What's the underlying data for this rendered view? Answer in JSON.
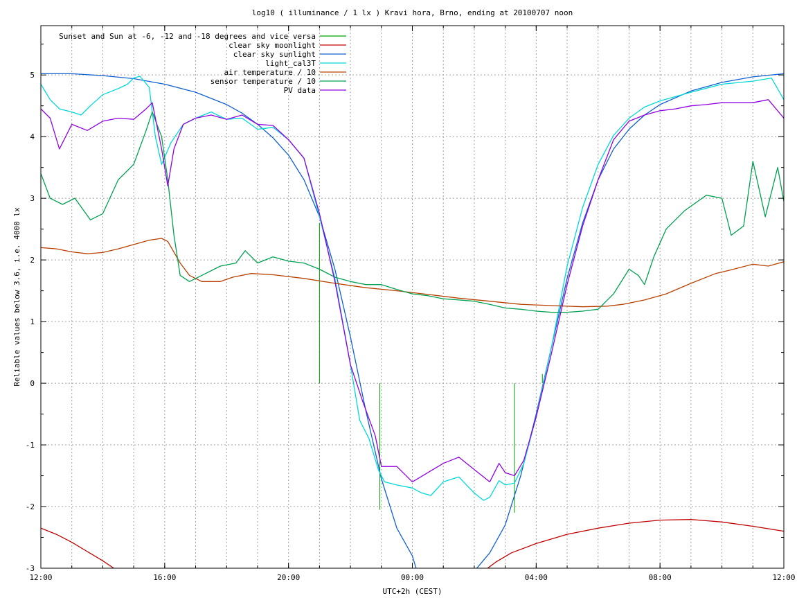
{
  "chart_data": {
    "type": "line",
    "title": "log10 ( illuminance / 1 lx ) Kravi hora, Brno, ending at 20100707 noon",
    "xlabel": "UTC+2h (CEST)",
    "ylabel": "Reliable values below 3.6, i.e. 4000 lx",
    "x_unit": "hours since 12:00 (previous day)",
    "xlim": [
      0,
      24
    ],
    "ylim": [
      -3,
      5.8
    ],
    "x_ticks": [
      {
        "value": 0,
        "label": "12:00"
      },
      {
        "value": 4,
        "label": "16:00"
      },
      {
        "value": 8,
        "label": "20:00"
      },
      {
        "value": 12,
        "label": "00:00"
      },
      {
        "value": 16,
        "label": "04:00"
      },
      {
        "value": 20,
        "label": "08:00"
      },
      {
        "value": 24,
        "label": "12:00"
      }
    ],
    "y_ticks": [
      {
        "value": -3,
        "label": "-3"
      },
      {
        "value": -2,
        "label": "-2"
      },
      {
        "value": -1,
        "label": "-1"
      },
      {
        "value": 0,
        "label": "0"
      },
      {
        "value": 1,
        "label": "1"
      },
      {
        "value": 2,
        "label": "2"
      },
      {
        "value": 3,
        "label": "3"
      },
      {
        "value": 4,
        "label": "4"
      },
      {
        "value": 5,
        "label": "5"
      }
    ],
    "grid": true,
    "legend_position": "top-left",
    "series": [
      {
        "name": "Sunset and Sun at -6, -12 and -18 degrees and vice versa",
        "color": "#00a000",
        "style": "impulses",
        "points": [
          [
            9.0,
            2.6
          ],
          [
            9.95,
            0
          ],
          [
            10.95,
            -2.05
          ],
          [
            12.7,
            0
          ],
          [
            13.45,
            0
          ],
          [
            15.3,
            -2.1
          ],
          [
            16.2,
            0
          ],
          [
            16.2,
            0.15
          ],
          [
            16.95,
            0
          ]
        ]
      },
      {
        "name": "clear sky moonlight",
        "color": "#c00000",
        "style": "line",
        "points": [
          [
            0,
            -2.35
          ],
          [
            0.5,
            -2.45
          ],
          [
            1.0,
            -2.58
          ],
          [
            1.5,
            -2.73
          ],
          [
            2.0,
            -2.88
          ],
          [
            2.5,
            -3.05
          ],
          [
            14.3,
            -3.05
          ],
          [
            14.7,
            -2.9
          ],
          [
            15.2,
            -2.75
          ],
          [
            16.0,
            -2.6
          ],
          [
            17.0,
            -2.45
          ],
          [
            18.0,
            -2.35
          ],
          [
            19.0,
            -2.27
          ],
          [
            20.0,
            -2.22
          ],
          [
            21.0,
            -2.21
          ],
          [
            22.0,
            -2.25
          ],
          [
            23.0,
            -2.32
          ],
          [
            24.0,
            -2.4
          ]
        ]
      },
      {
        "name": "clear sky sunlight",
        "color": "#1060d0",
        "style": "line",
        "points": [
          [
            0,
            5.02
          ],
          [
            1.0,
            5.02
          ],
          [
            2.0,
            4.99
          ],
          [
            3.0,
            4.94
          ],
          [
            4.0,
            4.85
          ],
          [
            5.0,
            4.72
          ],
          [
            6.0,
            4.52
          ],
          [
            6.5,
            4.38
          ],
          [
            7.0,
            4.2
          ],
          [
            7.5,
            3.98
          ],
          [
            8.0,
            3.7
          ],
          [
            8.5,
            3.3
          ],
          [
            9.0,
            2.7
          ],
          [
            9.5,
            1.85
          ],
          [
            10.0,
            0.75
          ],
          [
            10.5,
            -0.45
          ],
          [
            11.0,
            -1.55
          ],
          [
            11.5,
            -2.35
          ],
          [
            12.0,
            -2.8
          ],
          [
            12.15,
            -3.05
          ],
          [
            14.0,
            -3.05
          ],
          [
            14.5,
            -2.75
          ],
          [
            15.0,
            -2.3
          ],
          [
            15.5,
            -1.5
          ],
          [
            16.0,
            -0.5
          ],
          [
            16.5,
            0.6
          ],
          [
            17.0,
            1.7
          ],
          [
            17.5,
            2.6
          ],
          [
            18.0,
            3.3
          ],
          [
            18.5,
            3.8
          ],
          [
            19.0,
            4.12
          ],
          [
            19.5,
            4.35
          ],
          [
            20.0,
            4.52
          ],
          [
            21.0,
            4.74
          ],
          [
            22.0,
            4.88
          ],
          [
            23.0,
            4.97
          ],
          [
            24.0,
            5.02
          ]
        ]
      },
      {
        "name": "light_cal3T",
        "color": "#00d8d8",
        "style": "line",
        "points": [
          [
            0,
            4.85
          ],
          [
            0.3,
            4.6
          ],
          [
            0.6,
            4.45
          ],
          [
            1.0,
            4.4
          ],
          [
            1.3,
            4.35
          ],
          [
            1.6,
            4.5
          ],
          [
            2.0,
            4.68
          ],
          [
            2.5,
            4.78
          ],
          [
            2.8,
            4.85
          ],
          [
            3.0,
            4.95
          ],
          [
            3.2,
            4.98
          ],
          [
            3.5,
            4.8
          ],
          [
            3.7,
            4.0
          ],
          [
            3.9,
            3.55
          ],
          [
            4.2,
            3.9
          ],
          [
            4.6,
            4.2
          ],
          [
            5.0,
            4.3
          ],
          [
            5.5,
            4.4
          ],
          [
            6.0,
            4.28
          ],
          [
            6.5,
            4.3
          ],
          [
            7.0,
            4.12
          ],
          [
            7.5,
            4.15
          ],
          [
            8.0,
            3.95
          ],
          [
            8.5,
            3.65
          ],
          [
            9.0,
            2.7
          ],
          [
            9.5,
            1.7
          ],
          [
            10.0,
            0.3
          ],
          [
            10.3,
            -0.6
          ],
          [
            10.6,
            -0.9
          ],
          [
            10.9,
            -1.4
          ],
          [
            11.1,
            -1.6
          ],
          [
            11.5,
            -1.65
          ],
          [
            12.0,
            -1.7
          ],
          [
            12.3,
            -1.78
          ],
          [
            12.6,
            -1.82
          ],
          [
            13.0,
            -1.6
          ],
          [
            13.5,
            -1.52
          ],
          [
            14.0,
            -1.78
          ],
          [
            14.3,
            -1.9
          ],
          [
            14.5,
            -1.85
          ],
          [
            14.8,
            -1.58
          ],
          [
            15.0,
            -1.65
          ],
          [
            15.3,
            -1.62
          ],
          [
            15.6,
            -1.3
          ],
          [
            16.0,
            -0.55
          ],
          [
            16.5,
            0.6
          ],
          [
            17.0,
            1.9
          ],
          [
            17.5,
            2.85
          ],
          [
            18.0,
            3.55
          ],
          [
            18.5,
            4.02
          ],
          [
            19.0,
            4.3
          ],
          [
            19.5,
            4.48
          ],
          [
            20.0,
            4.58
          ],
          [
            21.0,
            4.72
          ],
          [
            22.0,
            4.85
          ],
          [
            23.0,
            4.9
          ],
          [
            23.6,
            4.95
          ],
          [
            24.0,
            4.6
          ]
        ]
      },
      {
        "name": "air temperature / 10",
        "color": "#b84000",
        "style": "line",
        "points": [
          [
            0,
            2.2
          ],
          [
            0.5,
            2.18
          ],
          [
            1.0,
            2.13
          ],
          [
            1.5,
            2.1
          ],
          [
            2.0,
            2.12
          ],
          [
            2.5,
            2.18
          ],
          [
            3.0,
            2.25
          ],
          [
            3.5,
            2.32
          ],
          [
            3.9,
            2.35
          ],
          [
            4.1,
            2.3
          ],
          [
            4.5,
            1.95
          ],
          [
            4.8,
            1.75
          ],
          [
            5.2,
            1.65
          ],
          [
            5.8,
            1.65
          ],
          [
            6.2,
            1.72
          ],
          [
            6.8,
            1.78
          ],
          [
            7.5,
            1.76
          ],
          [
            8.5,
            1.7
          ],
          [
            9.5,
            1.62
          ],
          [
            10.5,
            1.55
          ],
          [
            11.5,
            1.5
          ],
          [
            12.5,
            1.44
          ],
          [
            13.5,
            1.38
          ],
          [
            14.5,
            1.33
          ],
          [
            15.5,
            1.28
          ],
          [
            16.5,
            1.26
          ],
          [
            17.5,
            1.24
          ],
          [
            18.3,
            1.25
          ],
          [
            18.8,
            1.28
          ],
          [
            19.5,
            1.35
          ],
          [
            20.2,
            1.45
          ],
          [
            21.0,
            1.62
          ],
          [
            21.8,
            1.78
          ],
          [
            22.3,
            1.84
          ],
          [
            23.0,
            1.93
          ],
          [
            23.5,
            1.9
          ],
          [
            24.0,
            1.97
          ]
        ]
      },
      {
        "name": "sensor temperature / 10",
        "color": "#00a050",
        "style": "line",
        "points": [
          [
            0,
            3.4
          ],
          [
            0.3,
            3.0
          ],
          [
            0.7,
            2.9
          ],
          [
            1.1,
            3.0
          ],
          [
            1.6,
            2.65
          ],
          [
            2.0,
            2.75
          ],
          [
            2.5,
            3.3
          ],
          [
            3.0,
            3.55
          ],
          [
            3.4,
            4.1
          ],
          [
            3.6,
            4.4
          ],
          [
            3.9,
            4.0
          ],
          [
            4.1,
            3.3
          ],
          [
            4.3,
            2.4
          ],
          [
            4.5,
            1.75
          ],
          [
            4.8,
            1.65
          ],
          [
            5.2,
            1.75
          ],
          [
            5.8,
            1.9
          ],
          [
            6.3,
            1.95
          ],
          [
            6.6,
            2.15
          ],
          [
            7.0,
            1.95
          ],
          [
            7.5,
            2.05
          ],
          [
            8.0,
            1.98
          ],
          [
            8.5,
            1.95
          ],
          [
            9.0,
            1.85
          ],
          [
            9.5,
            1.72
          ],
          [
            10.0,
            1.65
          ],
          [
            10.5,
            1.6
          ],
          [
            11.0,
            1.6
          ],
          [
            11.5,
            1.52
          ],
          [
            12.0,
            1.45
          ],
          [
            12.5,
            1.42
          ],
          [
            13.0,
            1.37
          ],
          [
            13.5,
            1.35
          ],
          [
            14.0,
            1.33
          ],
          [
            14.5,
            1.28
          ],
          [
            15.0,
            1.22
          ],
          [
            15.5,
            1.2
          ],
          [
            16.0,
            1.17
          ],
          [
            16.5,
            1.15
          ],
          [
            17.0,
            1.15
          ],
          [
            17.5,
            1.17
          ],
          [
            18.0,
            1.2
          ],
          [
            18.5,
            1.45
          ],
          [
            19.0,
            1.85
          ],
          [
            19.3,
            1.75
          ],
          [
            19.5,
            1.6
          ],
          [
            19.8,
            2.05
          ],
          [
            20.2,
            2.5
          ],
          [
            20.8,
            2.8
          ],
          [
            21.5,
            3.05
          ],
          [
            22.0,
            3.0
          ],
          [
            22.3,
            2.4
          ],
          [
            22.7,
            2.55
          ],
          [
            23.0,
            3.6
          ],
          [
            23.4,
            2.7
          ],
          [
            23.8,
            3.5
          ],
          [
            24.0,
            2.95
          ]
        ]
      },
      {
        "name": "PV data",
        "color": "#9000e0",
        "style": "line",
        "points": [
          [
            0,
            4.45
          ],
          [
            0.3,
            4.3
          ],
          [
            0.6,
            3.8
          ],
          [
            1.0,
            4.2
          ],
          [
            1.5,
            4.1
          ],
          [
            2.0,
            4.25
          ],
          [
            2.5,
            4.3
          ],
          [
            3.0,
            4.28
          ],
          [
            3.4,
            4.45
          ],
          [
            3.6,
            4.55
          ],
          [
            3.9,
            3.8
          ],
          [
            4.1,
            3.2
          ],
          [
            4.3,
            3.8
          ],
          [
            4.6,
            4.2
          ],
          [
            5.0,
            4.3
          ],
          [
            5.5,
            4.35
          ],
          [
            6.0,
            4.28
          ],
          [
            6.5,
            4.35
          ],
          [
            7.0,
            4.2
          ],
          [
            7.5,
            4.18
          ],
          [
            8.0,
            3.95
          ],
          [
            8.5,
            3.65
          ],
          [
            9.0,
            2.75
          ],
          [
            9.5,
            1.65
          ],
          [
            10.0,
            0.3
          ],
          [
            10.4,
            -0.3
          ],
          [
            10.8,
            -0.85
          ],
          [
            11.0,
            -1.35
          ],
          [
            11.5,
            -1.35
          ],
          [
            12.0,
            -1.6
          ],
          [
            12.5,
            -1.45
          ],
          [
            13.0,
            -1.3
          ],
          [
            13.5,
            -1.2
          ],
          [
            14.0,
            -1.4
          ],
          [
            14.5,
            -1.6
          ],
          [
            14.8,
            -1.3
          ],
          [
            15.0,
            -1.45
          ],
          [
            15.3,
            -1.5
          ],
          [
            15.6,
            -1.25
          ],
          [
            16.0,
            -0.55
          ],
          [
            16.5,
            0.5
          ],
          [
            17.0,
            1.6
          ],
          [
            17.5,
            2.55
          ],
          [
            18.0,
            3.3
          ],
          [
            18.5,
            3.95
          ],
          [
            19.0,
            4.25
          ],
          [
            19.5,
            4.35
          ],
          [
            20.0,
            4.42
          ],
          [
            20.5,
            4.45
          ],
          [
            21.0,
            4.5
          ],
          [
            21.5,
            4.52
          ],
          [
            22.0,
            4.55
          ],
          [
            22.5,
            4.55
          ],
          [
            23.0,
            4.55
          ],
          [
            23.5,
            4.6
          ],
          [
            24.0,
            4.3
          ]
        ]
      }
    ]
  }
}
